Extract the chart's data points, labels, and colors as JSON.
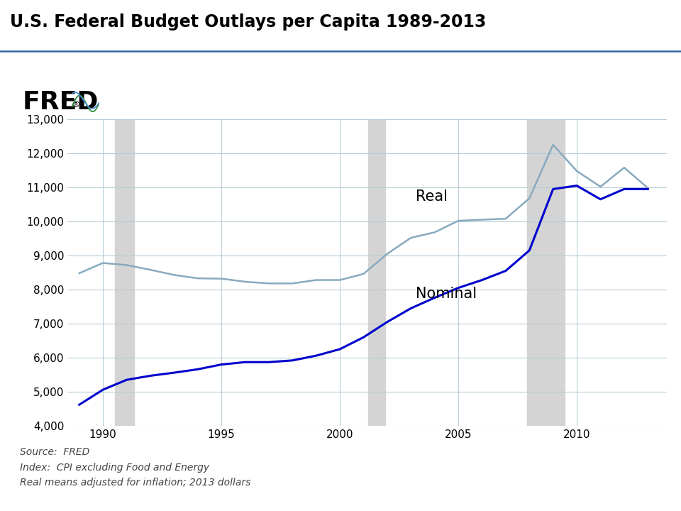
{
  "title": "U.S. Federal Budget Outlays per Capita 1989-2013",
  "title_fontsize": 17,
  "background_color": "#ffffff",
  "outer_bg_color": "#aac4d8",
  "fred_header_bg": "#aac4d8",
  "chart_area_bg": "#ffffff",
  "years": [
    1989,
    1990,
    1991,
    1992,
    1993,
    1994,
    1995,
    1996,
    1997,
    1998,
    1999,
    2000,
    2001,
    2002,
    2003,
    2004,
    2005,
    2006,
    2007,
    2008,
    2009,
    2010,
    2011,
    2012,
    2013
  ],
  "nominal": [
    4620,
    5060,
    5350,
    5470,
    5560,
    5660,
    5800,
    5870,
    5870,
    5920,
    6060,
    6250,
    6600,
    7050,
    7450,
    7760,
    8050,
    8280,
    8550,
    9150,
    10950,
    11050,
    10650,
    10950,
    10950
  ],
  "real": [
    8480,
    8780,
    8720,
    8580,
    8430,
    8330,
    8320,
    8230,
    8180,
    8180,
    8280,
    8280,
    8460,
    9050,
    9520,
    9680,
    10020,
    10050,
    10080,
    10680,
    12250,
    11480,
    11020,
    11580,
    10980
  ],
  "nominal_color": "#0000cc",
  "real_color": "#88aabf",
  "recession_bands": [
    {
      "start": 1990.5,
      "end": 1991.3
    },
    {
      "start": 2001.2,
      "end": 2001.9
    },
    {
      "start": 2007.9,
      "end": 2009.5
    }
  ],
  "recession_color": "#d4d4d4",
  "ylim": [
    4000,
    13000
  ],
  "yticks": [
    4000,
    5000,
    6000,
    7000,
    8000,
    9000,
    10000,
    11000,
    12000,
    13000
  ],
  "xlim": [
    1988.5,
    2013.8
  ],
  "xticks": [
    1990,
    1995,
    2000,
    2005,
    2010
  ],
  "grid_color": "#b8cdd8",
  "source_text": "Source:  FRED\nIndex:  CPI excluding Food and Energy\nReal means adjusted for inflation; 2013 dollars",
  "label_real": "Real",
  "label_nominal": "Nominal",
  "label_fontsize": 15,
  "title_line_color": "#3366aa"
}
